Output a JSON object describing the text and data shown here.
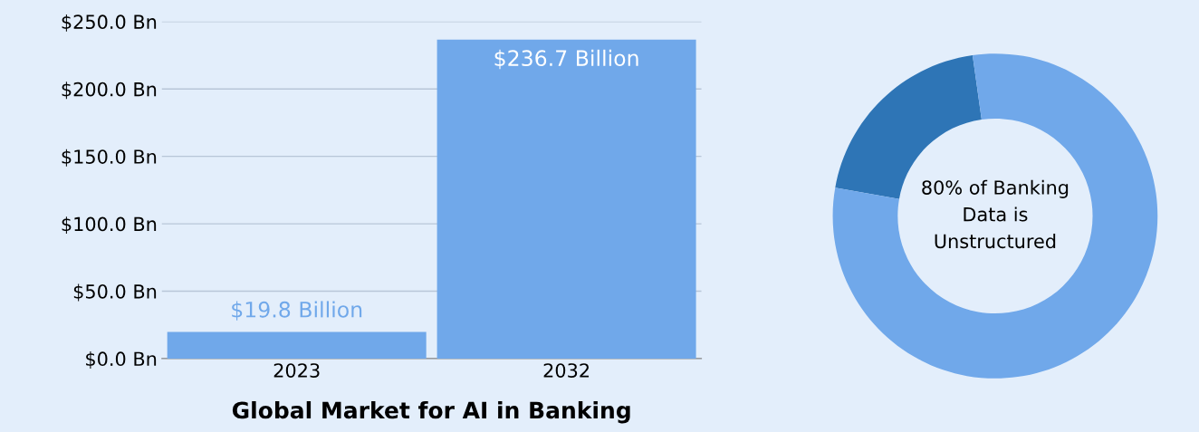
{
  "chart_data": [
    {
      "type": "bar",
      "title": "Global Market for AI in Banking",
      "categories": [
        "2023",
        "2032"
      ],
      "values": [
        19.8,
        236.7
      ],
      "color": "#70a8ea",
      "value_labels": [
        "$19.8 Billion",
        "$236.7 Billion"
      ],
      "ylim": [
        0,
        250
      ],
      "yticks": [
        {
          "value": 0,
          "label": "$0.0 Bn"
        },
        {
          "value": 50,
          "label": "$50.0 Bn"
        },
        {
          "value": 100,
          "label": "$100.0 Bn"
        },
        {
          "value": 150,
          "label": "$150.0 Bn"
        },
        {
          "value": 200,
          "label": "$200.0 Bn"
        },
        {
          "value": 250,
          "label": "$250.0 Bn"
        }
      ],
      "grid": "y"
    },
    {
      "type": "donut",
      "categories": [
        null,
        null
      ],
      "values": [
        20,
        80
      ],
      "colors": [
        "#2e75b6",
        "#70a8ea"
      ],
      "annotations": [
        "80% of Banking\nData is\nUnstructured"
      ]
    }
  ]
}
